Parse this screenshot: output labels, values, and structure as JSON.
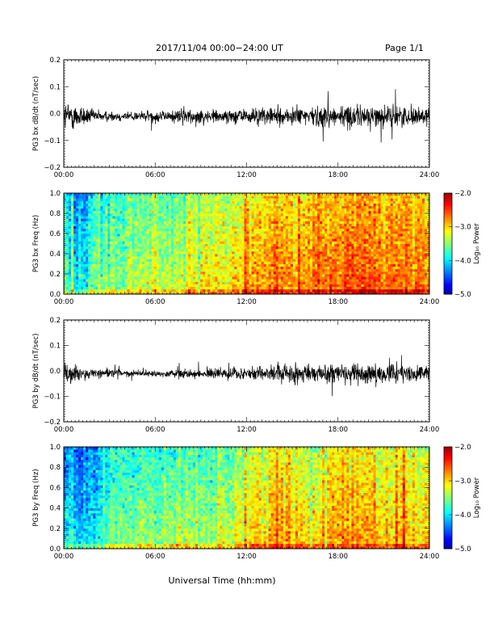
{
  "header": {
    "title": "2017/11/04  00:00−24:00 UT",
    "page": "Page 1/1"
  },
  "xlabel": "Universal Time (hh:mm)",
  "chart_data": [
    {
      "type": "line",
      "ylabel": "PG3 bx dB/dt (nT/sec)",
      "ylim": [
        -0.2,
        0.2
      ],
      "yticks": [
        "−0.2",
        "−0.1",
        "0.0",
        "0.1",
        "0.2"
      ],
      "xlim": [
        "00:00",
        "24:00"
      ],
      "xticks": [
        "00:00",
        "06:00",
        "12:00",
        "18:00",
        "24:00"
      ],
      "series": [
        {
          "color": "#000000",
          "x_hours": [
            0,
            1,
            2,
            3,
            4,
            5,
            6,
            7,
            8,
            9,
            10,
            11,
            12,
            13,
            14,
            15,
            16,
            17,
            18,
            19,
            20,
            21,
            22,
            23,
            24
          ],
          "envelope": [
            0.06,
            0.05,
            0.025,
            0.02,
            0.02,
            0.02,
            0.025,
            0.025,
            0.03,
            0.03,
            0.03,
            0.03,
            0.03,
            0.035,
            0.035,
            0.04,
            0.04,
            0.04,
            0.045,
            0.045,
            0.045,
            0.04,
            0.04,
            0.04,
            0.04
          ]
        }
      ]
    },
    {
      "type": "heatmap",
      "ylabel": "PG3 bx Freq (Hz)",
      "ylim": [
        0.0,
        1.0
      ],
      "yticks": [
        "0.0",
        "0.2",
        "0.4",
        "0.6",
        "0.8",
        "1.0"
      ],
      "xlim": [
        "00:00",
        "24:00"
      ],
      "xticks": [
        "00:00",
        "06:00",
        "12:00",
        "18:00",
        "24:00"
      ],
      "colorbar": {
        "label": "Log₁₀ Power",
        "range": [
          -5.0,
          -2.0
        ],
        "ticks": [
          "−2.0",
          "−3.0",
          "−4.0",
          "−5.0"
        ]
      },
      "x_hours": [
        0,
        1,
        2,
        3,
        4,
        5,
        6,
        7,
        8,
        9,
        10,
        11,
        12,
        13,
        14,
        15,
        16,
        17,
        18,
        19,
        20,
        21,
        22,
        23,
        24
      ],
      "mean_log_power": [
        -3.5,
        -4.0,
        -3.6,
        -3.45,
        -3.35,
        -3.3,
        -3.3,
        -3.25,
        -3.25,
        -3.2,
        -3.15,
        -3.1,
        -2.8,
        -2.75,
        -2.7,
        -2.75,
        -2.75,
        -2.6,
        -2.55,
        -2.5,
        -2.55,
        -2.6,
        -2.65,
        -2.7,
        -2.7
      ]
    },
    {
      "type": "line",
      "ylabel": "PG3 by dB/dt (nT/sec)",
      "ylim": [
        -0.2,
        0.2
      ],
      "yticks": [
        "−0.2",
        "−0.1",
        "0.0",
        "0.1",
        "0.2"
      ],
      "xlim": [
        "00:00",
        "24:00"
      ],
      "xticks": [
        "00:00",
        "06:00",
        "12:00",
        "18:00",
        "24:00"
      ],
      "series": [
        {
          "color": "#000000",
          "x_hours": [
            0,
            1,
            2,
            3,
            4,
            5,
            6,
            7,
            8,
            9,
            10,
            11,
            12,
            13,
            14,
            15,
            16,
            17,
            18,
            19,
            20,
            21,
            22,
            23,
            24
          ],
          "envelope": [
            0.04,
            0.035,
            0.02,
            0.02,
            0.015,
            0.015,
            0.015,
            0.015,
            0.02,
            0.02,
            0.02,
            0.025,
            0.03,
            0.035,
            0.035,
            0.045,
            0.04,
            0.04,
            0.04,
            0.045,
            0.04,
            0.04,
            0.035,
            0.035,
            0.035
          ]
        }
      ]
    },
    {
      "type": "heatmap",
      "ylabel": "PG3 by Freq (Hz)",
      "ylim": [
        0.0,
        1.0
      ],
      "yticks": [
        "0.0",
        "0.2",
        "0.4",
        "0.6",
        "0.8",
        "1.0"
      ],
      "xlim": [
        "00:00",
        "24:00"
      ],
      "xticks": [
        "00:00",
        "06:00",
        "12:00",
        "18:00",
        "24:00"
      ],
      "colorbar": {
        "label": "Log₁₀ Power",
        "range": [
          -5.0,
          -2.0
        ],
        "ticks": [
          "−2.0",
          "−3.0",
          "−4.0",
          "−5.0"
        ]
      },
      "x_hours": [
        0,
        1,
        2,
        3,
        4,
        5,
        6,
        7,
        8,
        9,
        10,
        11,
        12,
        13,
        14,
        15,
        16,
        17,
        18,
        19,
        20,
        21,
        22,
        23,
        24
      ],
      "mean_log_power": [
        -3.9,
        -4.3,
        -3.9,
        -3.7,
        -3.55,
        -3.45,
        -3.45,
        -3.4,
        -3.4,
        -3.35,
        -3.4,
        -3.3,
        -3.05,
        -3.0,
        -2.95,
        -2.95,
        -2.95,
        -2.85,
        -2.8,
        -2.75,
        -2.8,
        -2.85,
        -2.9,
        -2.95,
        -2.95
      ]
    }
  ]
}
